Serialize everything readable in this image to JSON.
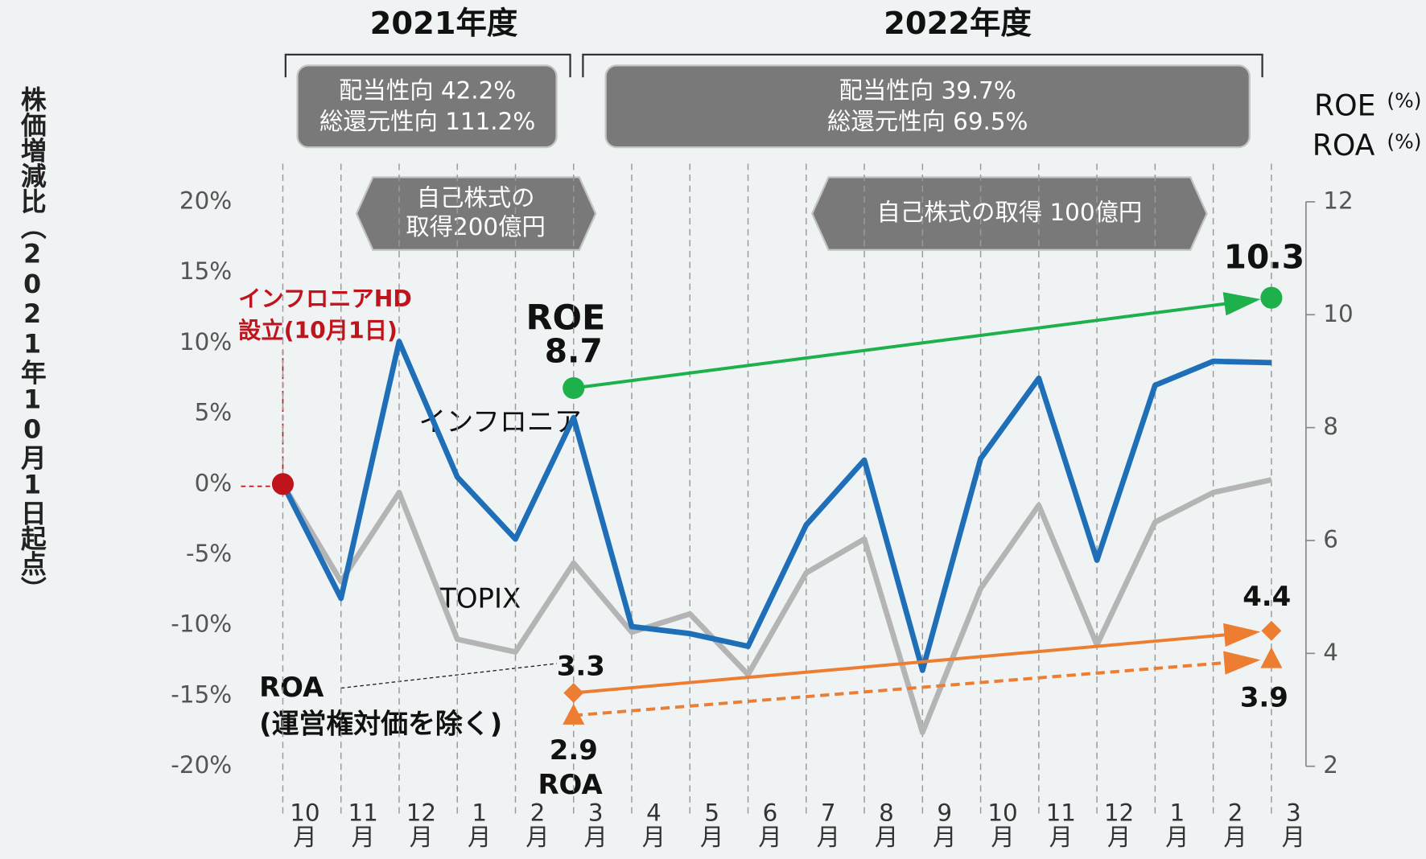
{
  "chart_data": {
    "type": "line",
    "categories": [
      "10月",
      "11月",
      "12月",
      "1月",
      "2月",
      "3月",
      "4月",
      "5月",
      "6月",
      "7月",
      "8月",
      "9月",
      "10月",
      "11月",
      "12月",
      "1月",
      "2月",
      "3月"
    ],
    "ylim": [
      -20,
      20
    ],
    "yticks": [
      {
        "value": -20,
        "label": "-20%"
      },
      {
        "value": -15,
        "label": "-15%"
      },
      {
        "value": -10,
        "label": "-10%"
      },
      {
        "value": -5,
        "label": "-5%"
      },
      {
        "value": 0,
        "label": "0%"
      },
      {
        "value": 5,
        "label": "5%"
      },
      {
        "value": 10,
        "label": "10%"
      },
      {
        "value": 15,
        "label": "15%"
      },
      {
        "value": 20,
        "label": "20%"
      }
    ],
    "ylabel": "株価増減比（2021年10月1日起点）",
    "y2lim": [
      2,
      12
    ],
    "y2ticks": [
      2,
      4,
      6,
      8,
      10,
      12
    ],
    "y2label": [
      "ROE",
      "ROA"
    ],
    "y2unit": "(%)",
    "series": [
      {
        "name": "インフロニア",
        "color": "#1f6fb8",
        "values": [
          0,
          -8.1,
          10.1,
          0.5,
          -3.9,
          4.7,
          -10.1,
          -10.6,
          -11.5,
          -2.9,
          1.7,
          -13.2,
          1.8,
          7.5,
          -5.4,
          7.0,
          8.7,
          8.6
        ]
      },
      {
        "name": "TOPIX",
        "color": "#b4b4b4",
        "values": [
          0,
          -6.9,
          -0.6,
          -11,
          -11.9,
          -5.6,
          -10.5,
          -9.2,
          -13.5,
          -6.3,
          -3.9,
          -17.6,
          -7.4,
          -1.5,
          -11.4,
          -2.7,
          -0.6,
          0.3
        ]
      },
      {
        "color": "#1db04b",
        "axis": "y2",
        "style": "arrow",
        "marker": "circle",
        "values": [
          null,
          null,
          null,
          null,
          null,
          8.7,
          null,
          null,
          null,
          null,
          null,
          null,
          null,
          null,
          null,
          null,
          null,
          10.3
        ]
      },
      {
        "color": "#ed7d31",
        "axis": "y2",
        "style": "arrow",
        "marker": "diamond",
        "values": [
          null,
          null,
          null,
          null,
          null,
          3.3,
          null,
          null,
          null,
          null,
          null,
          null,
          null,
          null,
          null,
          null,
          null,
          4.4
        ]
      },
      {
        "color": "#ed7d31",
        "axis": "y2",
        "style": "arrow",
        "marker": "triangle",
        "dash": true,
        "values": [
          null,
          null,
          null,
          null,
          null,
          2.9,
          null,
          null,
          null,
          null,
          null,
          null,
          null,
          null,
          null,
          null,
          null,
          3.9
        ]
      }
    ],
    "periods": [
      {
        "title": "2021年度",
        "payout": "配当性向 42.2%",
        "total_return": "総還元性向 111.2%",
        "buyback": [
          "自己株式の",
          "取得200億円"
        ]
      },
      {
        "title": "2022年度",
        "payout": "配当性向 39.7%",
        "total_return": "総還元性向 69.5%",
        "buyback": [
          "自己株式の取得 100億円"
        ]
      }
    ],
    "annotations": {
      "founding": [
        "インフロニアHD",
        "設立(10月1日)"
      ],
      "roe": "ROE",
      "roa": "ROA",
      "roa_excl": [
        "ROA",
        "(運営権対価を除く)"
      ]
    }
  }
}
